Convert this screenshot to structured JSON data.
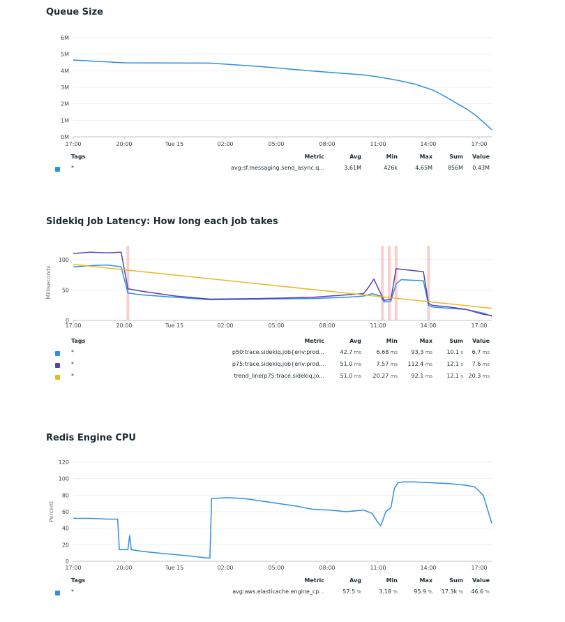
{
  "panels": [
    {
      "id": "queue",
      "title": "Queue Size",
      "ylabel": "",
      "x_ticks": [
        "17:00",
        "20:00",
        "Tue 15",
        "02:00",
        "05:00",
        "08:00",
        "11:00",
        "14:00",
        "17:00"
      ],
      "y_ticks": [
        "0M",
        "1M",
        "2M",
        "3M",
        "4M",
        "5M",
        "6M"
      ],
      "legend": {
        "headers": {
          "tags": "Tags",
          "metric": "Metric",
          "avg": "Avg",
          "min": "Min",
          "max": "Max",
          "sum": "Sum",
          "value": "Value"
        },
        "rows": [
          {
            "color": "#2d8fe3",
            "tag": "*",
            "metric": "avg:sf.messaging.send_async.q...",
            "avg": "3.61M",
            "avg_unit": "",
            "min": "426k",
            "min_unit": "",
            "max": "4.65M",
            "max_unit": "",
            "sum": "856M",
            "sum_unit": "",
            "value": "0.43M",
            "value_unit": ""
          }
        ]
      }
    },
    {
      "id": "latency",
      "title": "Sidekiq Job Latency: How long each job takes",
      "ylabel": "Milliseconds",
      "x_ticks": [
        "17:00",
        "20:00",
        "Tue 15",
        "02:00",
        "05:00",
        "08:00",
        "11:00",
        "14:00",
        "17:00"
      ],
      "y_ticks": [
        "0",
        "50",
        "100"
      ],
      "legend": {
        "headers": {
          "tags": "Tags",
          "metric": "Metric",
          "avg": "Avg",
          "min": "Min",
          "max": "Max",
          "sum": "Sum",
          "value": "Value"
        },
        "rows": [
          {
            "color": "#2d8fe3",
            "tag": "*",
            "metric": "p50:trace.sidekiq.job{env:prod...",
            "avg": "42.7",
            "avg_unit": "ms",
            "min": "6.68",
            "min_unit": "ms",
            "max": "93.3",
            "max_unit": "ms",
            "sum": "10.1",
            "sum_unit": "s",
            "value": "6.7",
            "value_unit": "ms"
          },
          {
            "color": "#5a3fb0",
            "tag": "*",
            "metric": "p75:trace.sidekiq.job{env:prod...",
            "avg": "51.0",
            "avg_unit": "ms",
            "min": "7.57",
            "min_unit": "ms",
            "max": "112.4",
            "max_unit": "ms",
            "sum": "12.1",
            "sum_unit": "s",
            "value": "7.6",
            "value_unit": "ms"
          },
          {
            "color": "#e9b824",
            "tag": "*",
            "metric": "trend_line(p75:trace.sidekiq.jo...",
            "avg": "51.0",
            "avg_unit": "ms",
            "min": "20.27",
            "min_unit": "ms",
            "max": "92.1",
            "max_unit": "ms",
            "sum": "12.1",
            "sum_unit": "s",
            "value": "20.3",
            "value_unit": "ms"
          }
        ]
      }
    },
    {
      "id": "cpu",
      "title": "Redis Engine CPU",
      "ylabel": "Percent",
      "x_ticks": [
        "17:00",
        "20:00",
        "Tue 15",
        "02:00",
        "05:00",
        "08:00",
        "11:00",
        "14:00",
        "17:00"
      ],
      "y_ticks": [
        "0",
        "20",
        "40",
        "60",
        "80",
        "100",
        "120"
      ],
      "legend": {
        "headers": {
          "tags": "Tags",
          "metric": "Metric",
          "avg": "Avg",
          "min": "Min",
          "max": "Max",
          "sum": "Sum",
          "value": "Value"
        },
        "rows": [
          {
            "color": "#2d8fe3",
            "tag": "*",
            "metric": "avg:aws.elasticache.engine_cp...",
            "avg": "57.5",
            "avg_unit": "%",
            "min": "3.18",
            "min_unit": "%",
            "max": "95.9",
            "max_unit": "%",
            "sum": "17.3k",
            "sum_unit": "%",
            "value": "46.6",
            "value_unit": "%"
          }
        ]
      }
    }
  ],
  "chart_data": [
    {
      "type": "line",
      "title": "Queue Size",
      "x_unit": "hours since 17:00 (Mon)",
      "xlim": [
        0,
        24.5
      ],
      "ylim": [
        0,
        6000000
      ],
      "y_tick_values": [
        0,
        1000000,
        2000000,
        3000000,
        4000000,
        5000000,
        6000000
      ],
      "grid": true,
      "series": [
        {
          "name": "avg:sf.messaging.send_async.q...",
          "color": "#2d8fe3",
          "x": [
            0,
            3,
            8,
            11,
            14,
            17,
            18,
            19,
            20,
            21,
            21.5,
            22,
            22.5,
            23,
            23.5,
            24,
            24.5
          ],
          "y": [
            4650000,
            4480000,
            4460000,
            4250000,
            3980000,
            3750000,
            3600000,
            3420000,
            3190000,
            2850000,
            2600000,
            2300000,
            2000000,
            1700000,
            1350000,
            900000,
            430000
          ]
        }
      ]
    },
    {
      "type": "line",
      "title": "Sidekiq Job Latency: How long each job takes",
      "ylabel": "Milliseconds",
      "x_unit": "hours since 17:00 (Mon)",
      "xlim": [
        0,
        24.5
      ],
      "ylim": [
        0,
        125
      ],
      "y_tick_values": [
        0,
        50,
        100
      ],
      "grid": true,
      "highlight_bands": [
        3.2,
        18.1,
        18.5,
        18.9,
        20.8
      ],
      "series": [
        {
          "name": "p50:trace.sidekiq.job{env:prod...",
          "color": "#2d8fe3",
          "x": [
            0,
            1,
            2,
            2.8,
            3.2,
            4,
            6,
            8,
            11,
            14,
            16,
            17,
            17.5,
            18,
            18.2,
            18.6,
            18.9,
            19.2,
            20.5,
            20.8,
            21,
            22,
            23,
            24,
            24.5
          ],
          "y": [
            88,
            90,
            91,
            88,
            45,
            42,
            38,
            34,
            35,
            36,
            38,
            40,
            44,
            40,
            30,
            32,
            60,
            67,
            65,
            25,
            22,
            20,
            18,
            12,
            7
          ]
        },
        {
          "name": "p75:trace.sidekiq.job{env:prod...",
          "color": "#5a3fb0",
          "x": [
            0,
            1,
            2,
            2.8,
            3.2,
            4,
            6,
            8,
            11,
            14,
            16,
            17,
            17.3,
            17.6,
            17.9,
            18.2,
            18.6,
            18.9,
            19.2,
            20.5,
            20.8,
            21,
            22,
            23,
            24,
            24.5
          ],
          "y": [
            110,
            112,
            111,
            112,
            52,
            48,
            40,
            35,
            36,
            38,
            42,
            44,
            55,
            68,
            50,
            33,
            35,
            85,
            84,
            80,
            28,
            25,
            22,
            18,
            10,
            8
          ]
        },
        {
          "name": "trend_line(p75:trace.sidekiq.jo...",
          "color": "#e9b824",
          "x": [
            0,
            24.5
          ],
          "y": [
            92,
            20
          ]
        }
      ]
    },
    {
      "type": "line",
      "title": "Redis Engine CPU",
      "ylabel": "Percent",
      "x_unit": "hours since 17:00 (Mon)",
      "xlim": [
        0,
        24.5
      ],
      "ylim": [
        0,
        120
      ],
      "y_tick_values": [
        0,
        20,
        40,
        60,
        80,
        100,
        120
      ],
      "grid": true,
      "series": [
        {
          "name": "avg:aws.elasticache.engine_cp...",
          "color": "#2d8fe3",
          "x": [
            0,
            1,
            2,
            2.6,
            2.7,
            3.2,
            3.3,
            3.4,
            4,
            5,
            6,
            7,
            7.8,
            8,
            8.1,
            9,
            10,
            11,
            12,
            13,
            14,
            15,
            16,
            16.5,
            17,
            17.5,
            17.8,
            18,
            18.3,
            18.6,
            18.8,
            19,
            19.3,
            20,
            21,
            22,
            22.5,
            23,
            23.5,
            24,
            24.5
          ],
          "y": [
            52,
            52,
            51,
            51,
            14,
            14,
            31,
            14,
            12,
            10,
            8,
            6,
            4,
            4,
            76,
            77,
            76,
            73,
            70,
            67,
            63,
            62,
            60,
            61,
            62,
            58,
            48,
            43,
            60,
            65,
            88,
            95,
            96,
            96,
            95,
            94,
            93,
            92,
            90,
            80,
            46
          ]
        }
      ]
    }
  ]
}
